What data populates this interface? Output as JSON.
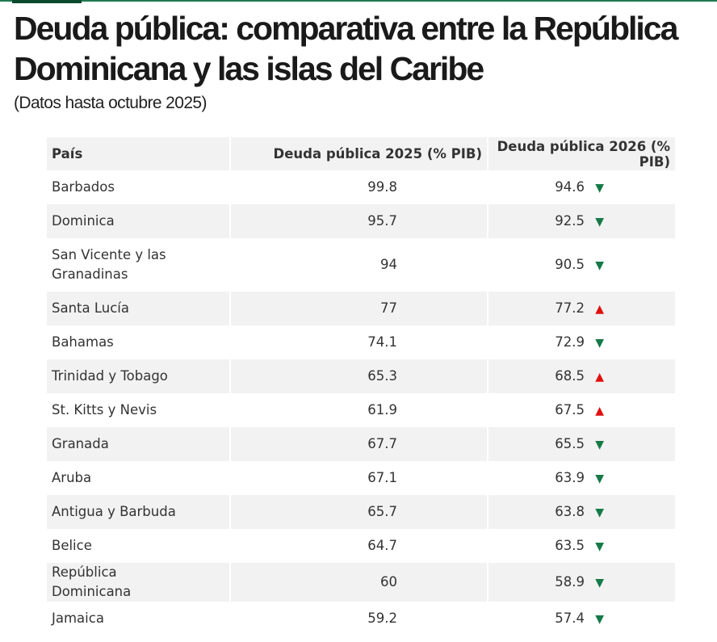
{
  "title": "Deuda pública: comparativa entre la República Dominicana y las islas del Caribe",
  "subtitle": "(Datos hasta octubre 2025)",
  "colors": {
    "accent": "#1f7a4d",
    "down": "#157a47",
    "up": "#e01010",
    "stripe": "#f2f2f2"
  },
  "chart_data": {
    "type": "table",
    "columns": [
      "País",
      "Deuda pública 2025 (% PIB)",
      "Deuda pública 2026 (% PIB)"
    ],
    "rows": [
      {
        "country": "Barbados",
        "d2025": "99.8",
        "d2026": "94.6",
        "trend": "down"
      },
      {
        "country": "Dominica",
        "d2025": "95.7",
        "d2026": "92.5",
        "trend": "down"
      },
      {
        "country": "San Vicente y las Granadinas",
        "d2025": "94",
        "d2026": "90.5",
        "trend": "down"
      },
      {
        "country": "Santa Lucía",
        "d2025": "77",
        "d2026": "77.2",
        "trend": "up"
      },
      {
        "country": "Bahamas",
        "d2025": "74.1",
        "d2026": "72.9",
        "trend": "down"
      },
      {
        "country": "Trinidad y Tobago",
        "d2025": "65.3",
        "d2026": "68.5",
        "trend": "up"
      },
      {
        "country": "St. Kitts y Nevis",
        "d2025": "61.9",
        "d2026": "67.5",
        "trend": "up"
      },
      {
        "country": "Granada",
        "d2025": "67.7",
        "d2026": "65.5",
        "trend": "down"
      },
      {
        "country": "Aruba",
        "d2025": "67.1",
        "d2026": "63.9",
        "trend": "down"
      },
      {
        "country": "Antigua y Barbuda",
        "d2025": "65.7",
        "d2026": "63.8",
        "trend": "down"
      },
      {
        "country": "Belice",
        "d2025": "64.7",
        "d2026": "63.5",
        "trend": "down"
      },
      {
        "country": "República Dominicana",
        "d2025": "60",
        "d2026": "58.9",
        "trend": "down"
      },
      {
        "country": "Jamaica",
        "d2025": "59.2",
        "d2026": "57.4",
        "trend": "down"
      }
    ]
  }
}
